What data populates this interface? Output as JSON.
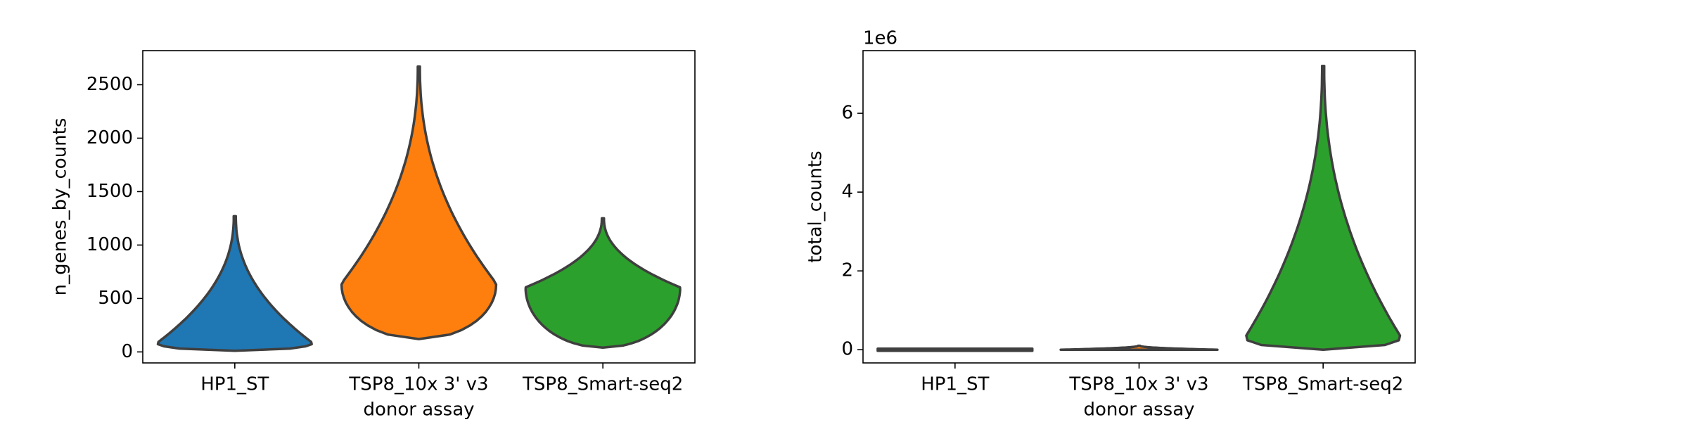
{
  "chart_data": [
    {
      "type": "violin",
      "ylabel": "n_genes_by_counts",
      "xlabel": "donor assay",
      "categories": [
        "HP1_ST",
        "TSP8_10x 3' v3",
        "TSP8_Smart-seq2"
      ],
      "colors": [
        "#1f77b4",
        "#ff7f0e",
        "#2ca02c"
      ],
      "min": [
        10,
        120,
        40
      ],
      "max": [
        1270,
        2670,
        1250
      ],
      "peak": [
        80,
        630,
        600
      ],
      "ylim": [
        -103,
        2819
      ],
      "yticks": [
        0,
        500,
        1000,
        1500,
        2000,
        2500
      ]
    },
    {
      "type": "violin",
      "ylabel": "total_counts",
      "xlabel": "donor assay",
      "offset_label": "1e6",
      "categories": [
        "HP1_ST",
        "TSP8_10x 3' v3",
        "TSP8_Smart-seq2"
      ],
      "colors": [
        "#1f77b4",
        "#ff7f0e",
        "#2ca02c"
      ],
      "min": [
        0,
        0,
        0
      ],
      "max": [
        0.01,
        0.1,
        7.2
      ],
      "peak": [
        0,
        0,
        0.3
      ],
      "ylim": [
        -0.335,
        7.59
      ],
      "yticks": [
        0,
        2,
        4,
        6
      ]
    }
  ]
}
